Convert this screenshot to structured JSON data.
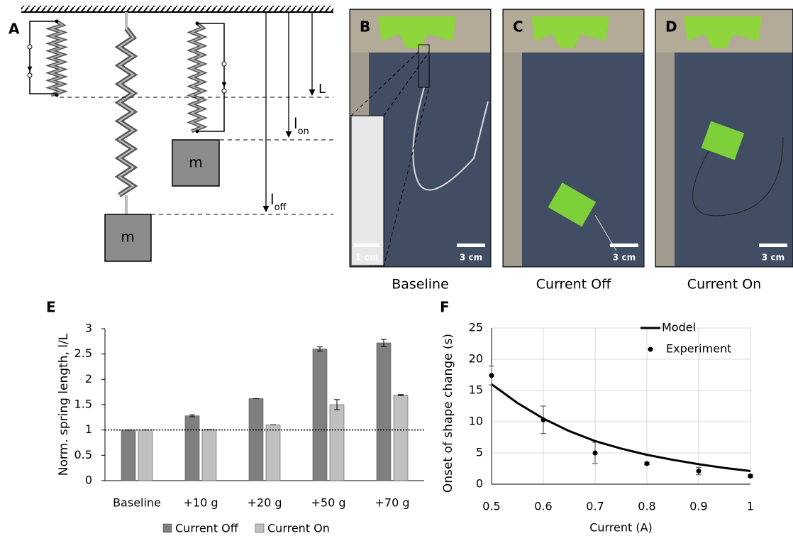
{
  "diagram": {
    "panel_label": "A",
    "mass_labels": [
      "m",
      "m"
    ],
    "L_label": "L",
    "l_on_label": {
      "base": "l",
      "sub": "on"
    },
    "l_off_label": {
      "base": "l",
      "sub": "off"
    }
  },
  "photos": [
    {
      "panel_label": "B",
      "caption": "Baseline",
      "scale_bar": "3 cm",
      "inset_scale_bar": "1 cm"
    },
    {
      "panel_label": "C",
      "caption": "Current Off",
      "scale_bar": "3 cm"
    },
    {
      "panel_label": "D",
      "caption": "Current On",
      "scale_bar": "3 cm"
    }
  ],
  "chart_data": [
    {
      "type": "bar",
      "panel_label": "E",
      "ylabel": "Norm. spring length, l/L",
      "categories": [
        "Baseline",
        "+10 g",
        "+20 g",
        "+50 g",
        "+70 g"
      ],
      "series": [
        {
          "name": "Current Off",
          "color": "#7f7f7f",
          "values": [
            1,
            1.28,
            1.62,
            2.6,
            2.72
          ],
          "errors": [
            0,
            0.02,
            0,
            0.04,
            0.07
          ]
        },
        {
          "name": "Current On",
          "color": "#c0c0c0",
          "values": [
            1,
            1.01,
            1.1,
            1.5,
            1.69
          ],
          "errors": [
            0,
            0,
            0,
            0.1,
            0.01
          ]
        }
      ],
      "reference_line": 1,
      "ylim": [
        0,
        3
      ],
      "yticks": [
        0,
        0.5,
        1,
        1.5,
        2,
        2.5,
        3
      ],
      "legend": "bottom",
      "grid": false
    },
    {
      "type": "line",
      "panel_label": "F",
      "xlabel": "Current (A)",
      "ylabel": "Onset of shape change (s)",
      "series": [
        {
          "name": "Model",
          "color": "#000000",
          "kind": "line",
          "x": [
            0.5,
            0.55,
            0.6,
            0.65,
            0.7,
            0.75,
            0.8,
            0.85,
            0.9,
            0.95,
            1
          ],
          "values": [
            16,
            13,
            10.5,
            8.5,
            6.9,
            5.7,
            4.7,
            3.9,
            3.2,
            2.6,
            2.1
          ]
        },
        {
          "name": "Experiment",
          "color": "#000000",
          "kind": "scatter",
          "x": [
            0.5,
            0.6,
            0.7,
            0.8,
            0.9,
            1
          ],
          "values": [
            17.4,
            10.3,
            5,
            3.3,
            2.1,
            1.3
          ],
          "errors": [
            1.5,
            2.2,
            1.7,
            0.2,
            0.6,
            0.2
          ]
        }
      ],
      "xlim": [
        0.5,
        1
      ],
      "xticks": [
        0.5,
        0.6,
        0.7,
        0.8,
        0.9,
        1
      ],
      "ylim": [
        0,
        25
      ],
      "yticks": [
        0,
        5,
        10,
        15,
        20,
        25
      ],
      "grid": true,
      "legend": "upper right"
    }
  ]
}
